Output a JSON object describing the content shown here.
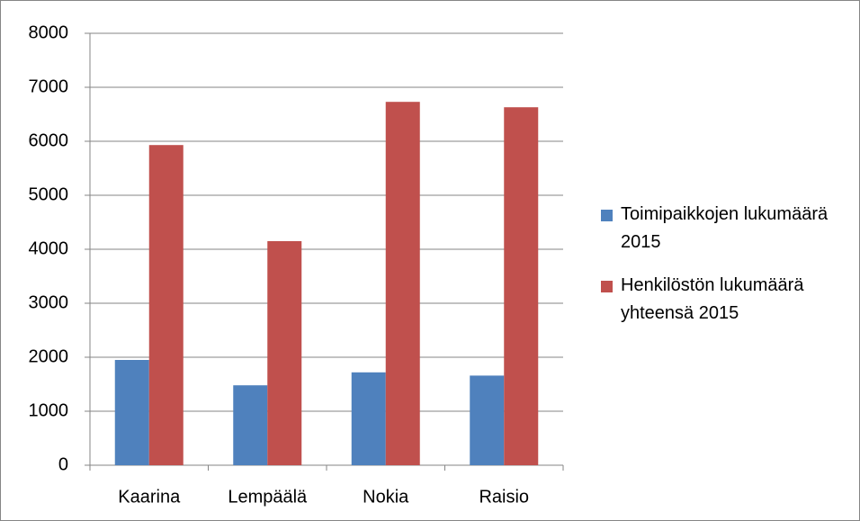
{
  "chart_data": {
    "type": "bar",
    "categories": [
      "Kaarina",
      "Lempäälä",
      "Nokia",
      "Raisio"
    ],
    "series": [
      {
        "name": "Toimipaikkojen lukumäärä 2015",
        "color": "#4f81bd",
        "values": [
          1950,
          1480,
          1720,
          1660
        ]
      },
      {
        "name": "Henkilöstön lukumäärä yhteensä 2015",
        "color": "#c0504d",
        "values": [
          5930,
          4150,
          6730,
          6630
        ]
      }
    ],
    "ylim": [
      0,
      8000
    ],
    "yticks": [
      0,
      1000,
      2000,
      3000,
      4000,
      5000,
      6000,
      7000,
      8000
    ],
    "grid": true,
    "legend": "right"
  }
}
